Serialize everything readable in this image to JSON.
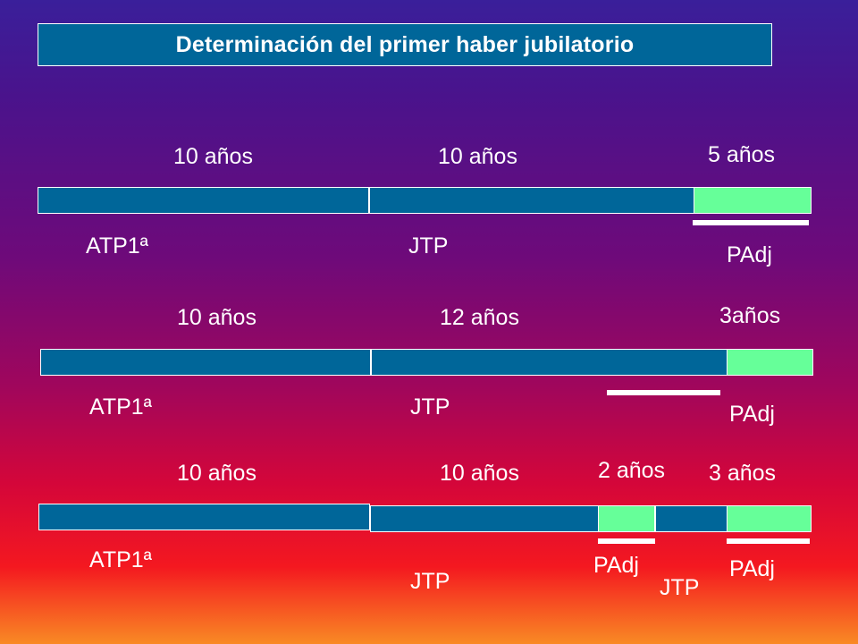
{
  "title": "Determinación del primer haber jubilatorio",
  "colors": {
    "bar_blue": "#006699",
    "adjustment_green": "#66ff99",
    "text": "#ffffff"
  },
  "rows": [
    {
      "durations": [
        "10 años",
        "10 años",
        "5 años"
      ],
      "labels": [
        "ATP1ª",
        "JTP",
        "PAdj"
      ]
    },
    {
      "durations": [
        "10 años",
        "12 años",
        "3años"
      ],
      "labels": [
        "ATP1ª",
        "JTP",
        "PAdj"
      ]
    },
    {
      "durations": [
        "10 años",
        "10 años",
        "2 años",
        "3 años"
      ],
      "labels": [
        "ATP1ª",
        "JTP",
        "PAdj",
        "JTP",
        "PAdj"
      ]
    }
  ]
}
